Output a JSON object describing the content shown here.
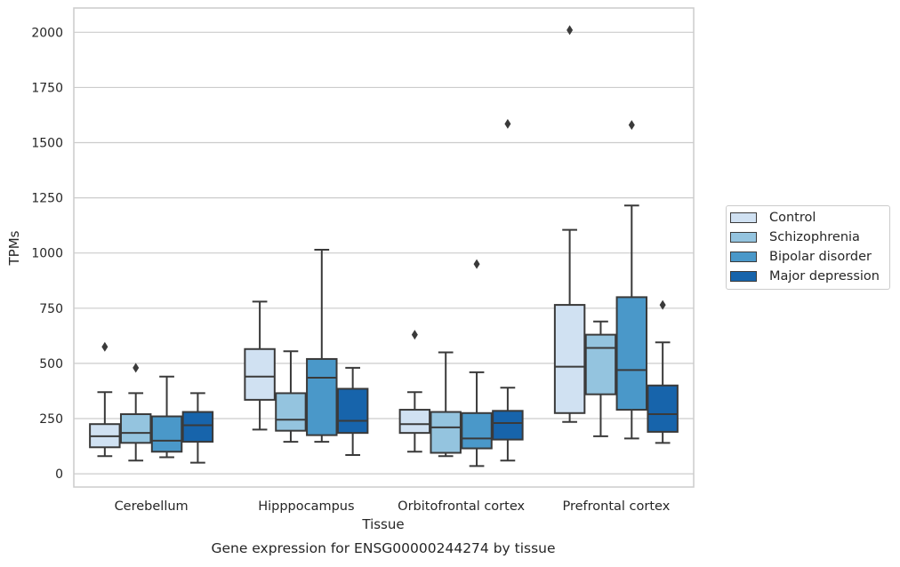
{
  "chart_data": {
    "type": "boxplot",
    "title": "Gene expression for ENSG00000244274 by tissue",
    "xlabel": "Tissue",
    "ylabel": "TPMs",
    "ylim": [
      -60,
      2110
    ],
    "yticks": [
      0,
      250,
      500,
      750,
      1000,
      1250,
      1500,
      1750,
      2000
    ],
    "categories": [
      "Cerebellum",
      "Hipppocampus",
      "Orbitofrontal cortex",
      "Prefrontal cortex"
    ],
    "grid": "horizontal",
    "legend_position": "right",
    "series": [
      {
        "name": "Control",
        "color": "#d0e1f2",
        "boxes": [
          {
            "whisker_low": 80,
            "q1": 120,
            "median": 170,
            "q3": 225,
            "whisker_high": 370,
            "outliers": [
              575
            ]
          },
          {
            "whisker_low": 200,
            "q1": 335,
            "median": 440,
            "q3": 565,
            "whisker_high": 780,
            "outliers": []
          },
          {
            "whisker_low": 100,
            "q1": 185,
            "median": 225,
            "q3": 290,
            "whisker_high": 370,
            "outliers": [
              630
            ]
          },
          {
            "whisker_low": 235,
            "q1": 275,
            "median": 485,
            "q3": 765,
            "whisker_high": 1105,
            "outliers": [
              2010
            ]
          }
        ]
      },
      {
        "name": "Schizophrenia",
        "color": "#94c4df",
        "boxes": [
          {
            "whisker_low": 60,
            "q1": 140,
            "median": 185,
            "q3": 270,
            "whisker_high": 365,
            "outliers": [
              480
            ]
          },
          {
            "whisker_low": 145,
            "q1": 195,
            "median": 245,
            "q3": 365,
            "whisker_high": 555,
            "outliers": []
          },
          {
            "whisker_low": 80,
            "q1": 95,
            "median": 210,
            "q3": 280,
            "whisker_high": 550,
            "outliers": []
          },
          {
            "whisker_low": 170,
            "q1": 360,
            "median": 570,
            "q3": 630,
            "whisker_high": 690,
            "outliers": []
          }
        ]
      },
      {
        "name": "Bipolar disorder",
        "color": "#4a98c9",
        "boxes": [
          {
            "whisker_low": 75,
            "q1": 100,
            "median": 150,
            "q3": 260,
            "whisker_high": 440,
            "outliers": []
          },
          {
            "whisker_low": 145,
            "q1": 175,
            "median": 435,
            "q3": 520,
            "whisker_high": 1015,
            "outliers": []
          },
          {
            "whisker_low": 35,
            "q1": 115,
            "median": 160,
            "q3": 275,
            "whisker_high": 460,
            "outliers": [
              950
            ]
          },
          {
            "whisker_low": 160,
            "q1": 290,
            "median": 470,
            "q3": 800,
            "whisker_high": 1215,
            "outliers": [
              1580
            ]
          }
        ]
      },
      {
        "name": "Major depression",
        "color": "#1764ab",
        "boxes": [
          {
            "whisker_low": 50,
            "q1": 145,
            "median": 220,
            "q3": 280,
            "whisker_high": 365,
            "outliers": []
          },
          {
            "whisker_low": 85,
            "q1": 185,
            "median": 240,
            "q3": 385,
            "whisker_high": 480,
            "outliers": []
          },
          {
            "whisker_low": 60,
            "q1": 155,
            "median": 230,
            "q3": 285,
            "whisker_high": 390,
            "outliers": [
              1585
            ]
          },
          {
            "whisker_low": 140,
            "q1": 190,
            "median": 270,
            "q3": 400,
            "whisker_high": 595,
            "outliers": [
              765
            ]
          }
        ]
      }
    ]
  }
}
